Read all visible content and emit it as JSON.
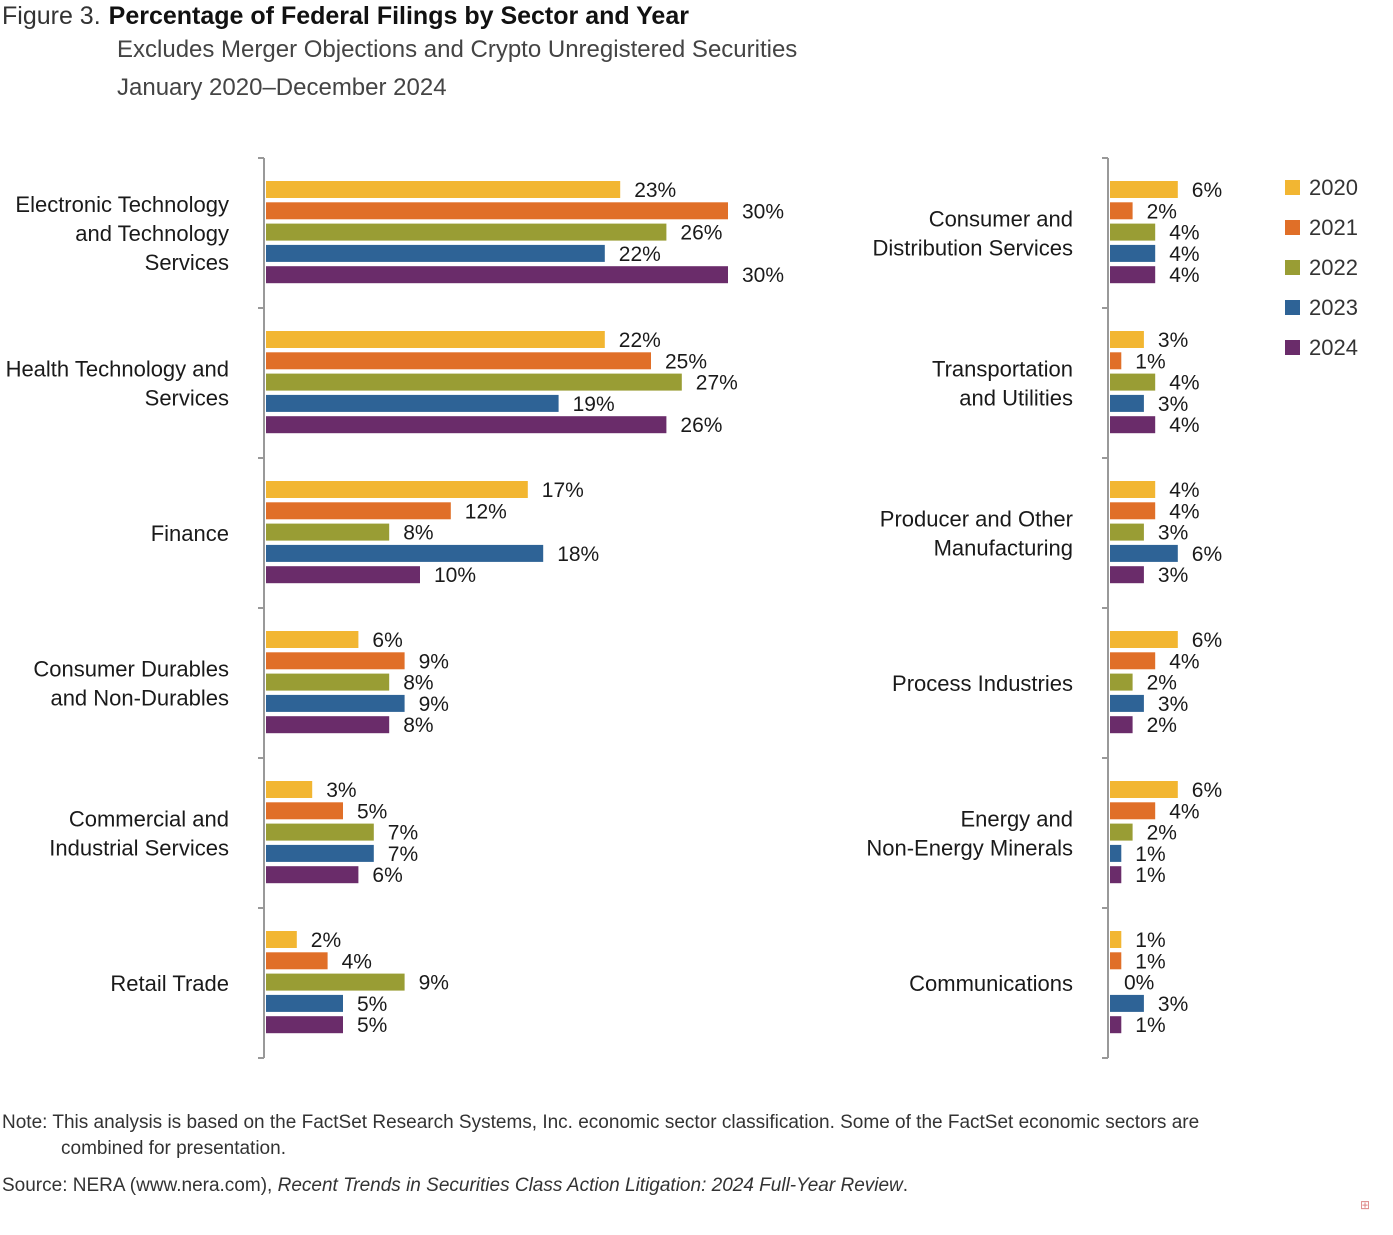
{
  "header": {
    "figure_label": "Figure 3.",
    "title": "Percentage of Federal Filings by Sector and Year",
    "subtitle_1": "Excludes Merger Objections and Crypto Unregistered Securities",
    "subtitle_2": "January 2020–December 2024"
  },
  "footer": {
    "note_line1": "Note: This analysis is based on the FactSet Research Systems, Inc. economic sector classification. Some of the FactSet economic sectors are",
    "note_line2": "combined for presentation.",
    "source_prefix": "Source: NERA (www.nera.com), ",
    "source_italic": "Recent Trends in Securities Class Action Litigation: 2024 Full-Year Review",
    "source_suffix": "."
  },
  "chart_data": {
    "type": "bar",
    "orientation": "horizontal",
    "title": "Percentage of Federal Filings by Sector and Year",
    "unit": "%",
    "legend": {
      "position": "right",
      "entries": [
        {
          "name": "2020",
          "color": "#F2B632"
        },
        {
          "name": "2021",
          "color": "#E06F28"
        },
        {
          "name": "2022",
          "color": "#999D34"
        },
        {
          "name": "2023",
          "color": "#2E6396"
        },
        {
          "name": "2024",
          "color": "#6A2C6A"
        }
      ]
    },
    "panels": [
      {
        "name": "left",
        "xlim": [
          0,
          30
        ],
        "categories": [
          {
            "label": [
              "Electronic Technology",
              "and Technology",
              "Services"
            ],
            "values": [
              23,
              30,
              26,
              22,
              30
            ]
          },
          {
            "label": [
              "Health Technology and",
              "Services"
            ],
            "values": [
              22,
              25,
              27,
              19,
              26
            ]
          },
          {
            "label": [
              "Finance"
            ],
            "values": [
              17,
              12,
              8,
              18,
              10
            ]
          },
          {
            "label": [
              "Consumer Durables",
              "and Non-Durables"
            ],
            "values": [
              6,
              9,
              8,
              9,
              8
            ]
          },
          {
            "label": [
              "Commercial and",
              "Industrial Services"
            ],
            "values": [
              3,
              5,
              7,
              7,
              6
            ]
          },
          {
            "label": [
              "Retail Trade"
            ],
            "values": [
              2,
              4,
              9,
              5,
              5
            ]
          }
        ]
      },
      {
        "name": "right",
        "xlim": [
          0,
          6
        ],
        "categories": [
          {
            "label": [
              "Consumer and",
              "Distribution Services"
            ],
            "values": [
              6,
              2,
              4,
              4,
              4
            ]
          },
          {
            "label": [
              "Transportation",
              "and Utilities"
            ],
            "values": [
              3,
              1,
              4,
              3,
              4
            ]
          },
          {
            "label": [
              "Producer and Other",
              "Manufacturing"
            ],
            "values": [
              4,
              4,
              3,
              6,
              3
            ]
          },
          {
            "label": [
              "Process Industries"
            ],
            "values": [
              6,
              4,
              2,
              3,
              2
            ]
          },
          {
            "label": [
              "Energy and",
              "Non-Energy Minerals"
            ],
            "values": [
              6,
              4,
              2,
              1,
              1
            ]
          },
          {
            "label": [
              "Communications"
            ],
            "values": [
              1,
              1,
              0,
              3,
              1
            ]
          }
        ]
      }
    ]
  }
}
